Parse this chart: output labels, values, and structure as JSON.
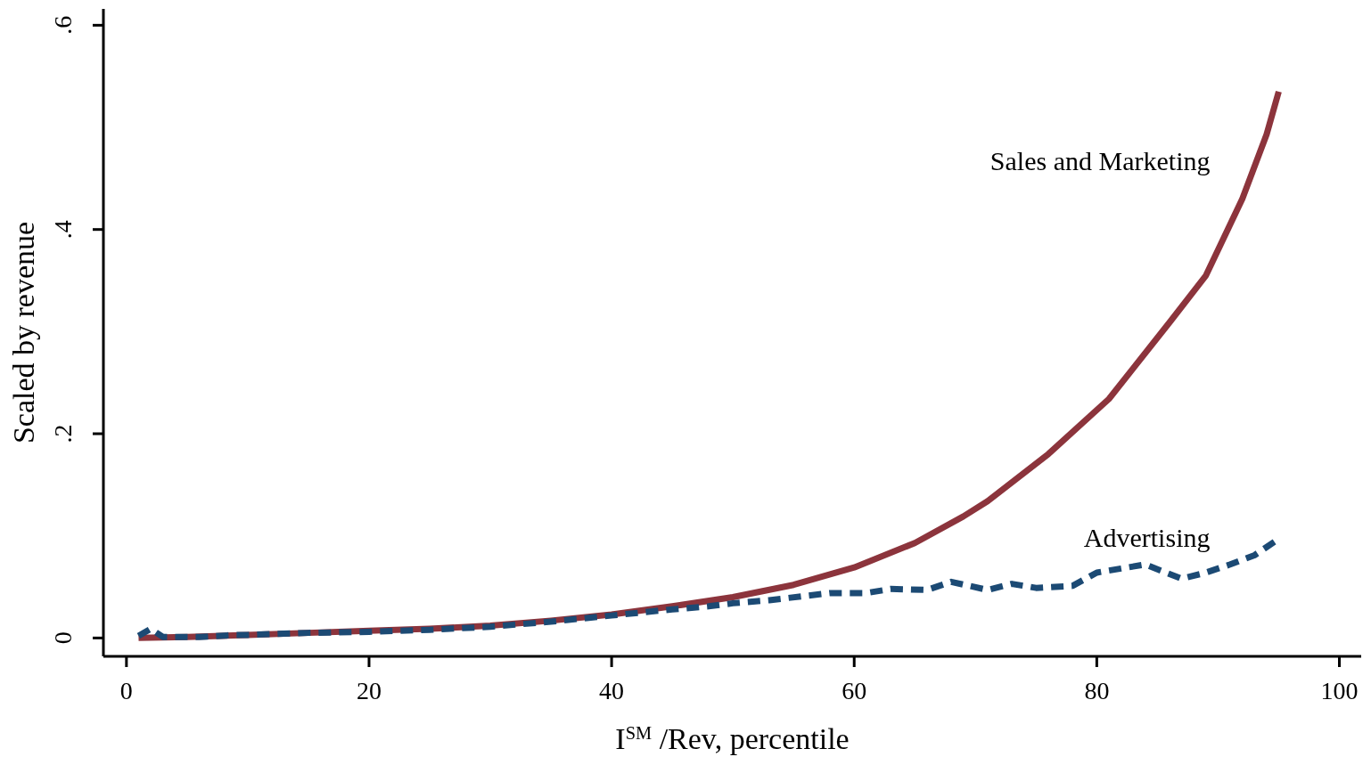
{
  "chart_data": {
    "type": "line",
    "xlabel": "I$^{SM}$/Rev, percentile",
    "ylabel": "Scaled by revenue",
    "xlim": [
      -1.9,
      101.8
    ],
    "xticks": [
      0,
      20,
      40,
      60,
      80,
      100
    ],
    "ylim": [
      -0.018,
      0.616
    ],
    "yticks": [
      {
        "value": 0,
        "label": "0"
      },
      {
        "value": 0.2,
        "label": ".2"
      },
      {
        "value": 0.4,
        "label": ".4"
      },
      {
        "value": 0.6,
        "label": ".6"
      }
    ],
    "grid": false,
    "legend": false,
    "marker": "none",
    "series": [
      {
        "name": "Sales and Marketing",
        "color": "#8c343c",
        "line_style": "solid",
        "x": [
          1,
          5,
          10,
          15,
          20,
          25,
          30,
          35,
          40,
          45,
          50,
          55,
          60,
          65,
          69,
          71,
          76,
          81,
          86,
          89,
          92,
          94,
          95
        ],
        "values": [
          0,
          0.001,
          0.003,
          0.005,
          0.007,
          0.009,
          0.012,
          0.017,
          0.023,
          0.031,
          0.04,
          0.052,
          0.069,
          0.093,
          0.119,
          0.134,
          0.18,
          0.234,
          0.309,
          0.355,
          0.43,
          0.493,
          0.535
        ]
      },
      {
        "name": "Advertising",
        "color": "#1c4a74",
        "line_style": "dashed",
        "x": [
          1,
          2,
          3,
          6,
          9,
          10,
          15,
          20,
          25,
          30,
          35,
          40,
          45,
          48,
          50,
          53,
          58,
          61,
          63,
          66,
          68,
          71,
          73,
          75,
          78,
          80,
          82,
          84,
          87,
          89,
          91,
          93,
          95
        ],
        "values": [
          0.002,
          0.009,
          0.001,
          0.001,
          0.003,
          0.003,
          0.005,
          0.006,
          0.008,
          0.011,
          0.016,
          0.022,
          0.028,
          0.031,
          0.034,
          0.037,
          0.044,
          0.044,
          0.048,
          0.047,
          0.055,
          0.047,
          0.053,
          0.049,
          0.051,
          0.064,
          0.068,
          0.072,
          0.058,
          0.064,
          0.072,
          0.081,
          0.097
        ]
      }
    ]
  }
}
